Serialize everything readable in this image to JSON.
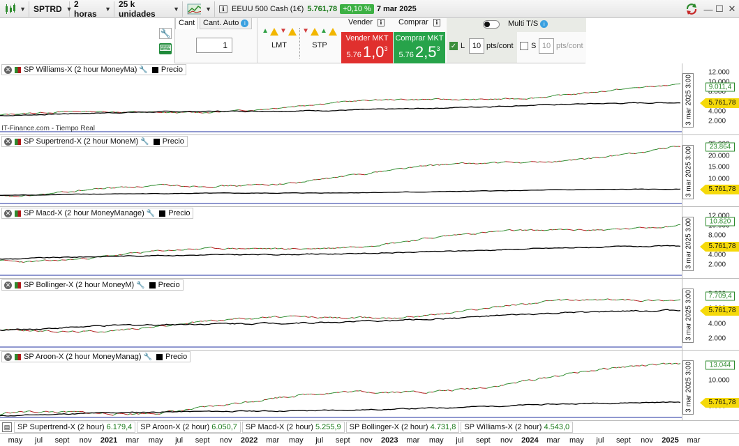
{
  "toolbar": {
    "ticker": "SPTRD",
    "timeframe": "2 horas",
    "quantity": "25 k unidades",
    "instrument": "EEUU 500 Cash (1€)",
    "price": "5.761,78",
    "change": "+0,10 %",
    "date": "7 mar 2025"
  },
  "order": {
    "tab_cant": "Cant",
    "tab_cant_auto": "Cant. Auto",
    "quantity_value": "1",
    "lmt_label": "LMT",
    "stp_label": "STP",
    "sell_header": "Vender",
    "buy_header": "Comprar",
    "sell_title": "Vender MKT",
    "sell_prefix": "5.76",
    "sell_big": "1,0",
    "sell_sup": "3",
    "buy_title": "Comprar MKT",
    "buy_prefix": "5.76",
    "buy_big": "2,5",
    "buy_sup": "3",
    "multi_ts": "Multi T/S",
    "l_label": "L",
    "l_value": "10",
    "l_unit": "pts/cont",
    "s_label": "S",
    "s_value": "10",
    "s_unit": "pts/cont"
  },
  "panes": [
    {
      "title": "SP Williams-X (2 hour MoneyMa)",
      "price_label": "Precio",
      "date_marker": "3 mar 2025 3:00",
      "y_ticks": [
        "12.000",
        "10.000",
        "8.000",
        "6.000",
        "4.000",
        "2.000"
      ],
      "strategy_value": "9.011,4",
      "price_value": "5.761,78",
      "watermark": "IT-Finance.com - Tiempo Real"
    },
    {
      "title": "SP Supertrend-X (2 hour MoneM)",
      "price_label": "Precio",
      "date_marker": "3 mar 2025 3:00",
      "y_ticks": [
        "25.000",
        "20.000",
        "15.000",
        "10.000",
        "5.000"
      ],
      "strategy_value": "23.864",
      "price_value": "5.761,78"
    },
    {
      "title": "SP Macd-X (2 hour MoneyManage)",
      "price_label": "Precio",
      "date_marker": "3 mar 2025 3:00",
      "y_ticks": [
        "12.000",
        "10.000",
        "8.000",
        "6.000",
        "4.000",
        "2.000"
      ],
      "strategy_value": "10.820",
      "price_value": "5.761,78"
    },
    {
      "title": "SP Bollinger-X (2 hour MoneyM)",
      "price_label": "Precio",
      "date_marker": "3 mar 2025 3:00",
      "y_ticks": [
        "8.000",
        "6.000",
        "4.000",
        "2.000"
      ],
      "strategy_value": "7.709,4",
      "price_value": "5.761,78"
    },
    {
      "title": "SP Aroon-X (2 hour MoneyManag)",
      "price_label": "Precio",
      "date_marker": "3 mar 2025 3:00",
      "y_ticks": [
        "10.000",
        "5.000"
      ],
      "strategy_value": "13.044",
      "price_value": "5.761,78"
    }
  ],
  "legend": [
    {
      "name": "SP Supertrend-X (2 hour)",
      "value": "6.179,4"
    },
    {
      "name": "SP Aroon-X (2 hour)",
      "value": "6.050,7"
    },
    {
      "name": "SP Macd-X (2 hour)",
      "value": "5.255,9"
    },
    {
      "name": "SP Bollinger-X (2 hour)",
      "value": "4.731,8"
    },
    {
      "name": "SP Williams-X (2 hour)",
      "value": "4.543,0"
    }
  ],
  "xaxis": [
    "may",
    "jul",
    "sept",
    "nov",
    "2021",
    "mar",
    "may",
    "jul",
    "sept",
    "nov",
    "2022",
    "mar",
    "may",
    "jul",
    "sept",
    "nov",
    "2023",
    "mar",
    "may",
    "jul",
    "sept",
    "nov",
    "2024",
    "mar",
    "may",
    "jul",
    "sept",
    "nov",
    "2025",
    "mar"
  ],
  "colors": {
    "up": "#2e8b2e",
    "down": "#b01b1b",
    "price": "#000000",
    "highlight": "#f5d90a",
    "sell": "#e0302e",
    "buy": "#27a34a"
  }
}
